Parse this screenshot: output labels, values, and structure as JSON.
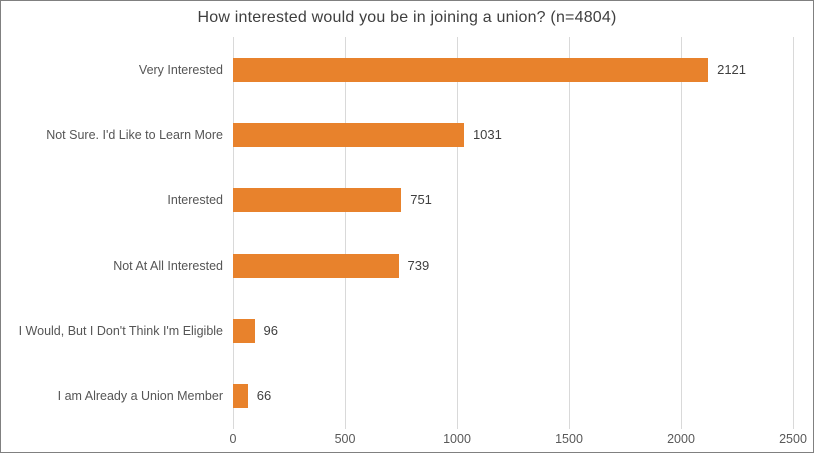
{
  "window": {
    "background_color": "#ffffff",
    "border_color": "#808080"
  },
  "chart_data": {
    "type": "bar",
    "orientation": "horizontal",
    "title": "How interested would you be in joining a union? (n=4804)",
    "categories": [
      "Very Interested",
      "Not Sure. I'd Like to Learn More",
      "Interested",
      "Not At All Interested",
      "I Would, But I Don't Think I'm Eligible",
      "I am Already a Union Member"
    ],
    "values": [
      2121,
      1031,
      751,
      739,
      96,
      66
    ],
    "value_labels": [
      "2121",
      "1031",
      "751",
      "739",
      "96",
      "66"
    ],
    "xlabel": "",
    "ylabel": "",
    "xlim": [
      0,
      2500
    ],
    "xticks": [
      0,
      500,
      1000,
      1500,
      2000,
      2500
    ],
    "grid": true,
    "legend_position": "none",
    "bar_color": "#e8822c",
    "gridline_color": "#d9d9d9",
    "title_color": "#3f3f3f",
    "category_label_color": "#555555",
    "value_label_color": "#3f3f3f",
    "tick_label_color": "#595959"
  }
}
